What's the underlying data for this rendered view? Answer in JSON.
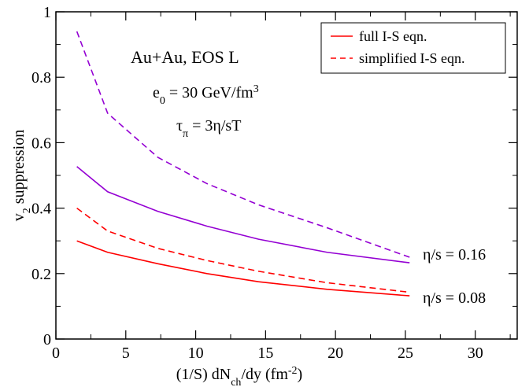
{
  "chart_data": {
    "type": "line",
    "xlim": [
      0,
      33
    ],
    "ylim": [
      0,
      1
    ],
    "x_ticks": [
      "0",
      "5",
      "10",
      "15",
      "20",
      "25",
      "30"
    ],
    "x_tick_values": [
      0,
      5,
      10,
      15,
      20,
      25,
      30
    ],
    "y_ticks": [
      "0",
      "0.2",
      "0.4",
      "0.6",
      "0.8",
      "1"
    ],
    "y_tick_values": [
      0,
      0.2,
      0.4,
      0.6,
      0.8,
      1
    ],
    "xlabel": {
      "pre": "(1/S) dN",
      "sub": "ch",
      "mid": "/dy (fm",
      "sup": "-2",
      "post": ")"
    },
    "ylabel": {
      "pre": "v",
      "sub": "2",
      "post": " suppression"
    },
    "annotations": {
      "system": "Au+Au, EOS L",
      "energy": {
        "pre": "e",
        "sub": "0",
        "mid": " = 30 GeV/fm",
        "sup": "3"
      },
      "tau": {
        "pre": "τ",
        "sub": "π",
        "post": " = 3η/sT"
      }
    },
    "legend_position": "top-right",
    "legend": [
      {
        "label": "full I-S eqn.",
        "style": "solid",
        "color": "#ff0000"
      },
      {
        "label": "simplified I-S eqn.",
        "style": "dashed",
        "color": "#ff0000"
      }
    ],
    "series": [
      {
        "style": "dashed",
        "color": "#9400d3",
        "x": [
          1.5,
          3.7,
          7.3,
          10.8,
          14.5,
          19.4,
          25.3
        ],
        "y": [
          0.94,
          0.69,
          0.555,
          0.475,
          0.41,
          0.34,
          0.25
        ]
      },
      {
        "style": "solid",
        "color": "#9400d3",
        "x": [
          1.5,
          3.7,
          7.3,
          10.8,
          14.5,
          19.4,
          25.3
        ],
        "y": [
          0.527,
          0.45,
          0.39,
          0.345,
          0.305,
          0.265,
          0.233
        ]
      },
      {
        "style": "dashed",
        "color": "#ff0000",
        "x": [
          1.5,
          3.7,
          7.3,
          10.8,
          14.5,
          19.4,
          25.3
        ],
        "y": [
          0.4,
          0.33,
          0.277,
          0.24,
          0.207,
          0.172,
          0.143
        ]
      },
      {
        "style": "solid",
        "color": "#ff0000",
        "x": [
          1.5,
          3.7,
          7.3,
          10.8,
          14.5,
          19.4,
          25.3
        ],
        "y": [
          0.3,
          0.265,
          0.23,
          0.2,
          0.175,
          0.152,
          0.132
        ]
      }
    ],
    "curve_labels": [
      "η/s = 0.16",
      "η/s = 0.08"
    ]
  }
}
